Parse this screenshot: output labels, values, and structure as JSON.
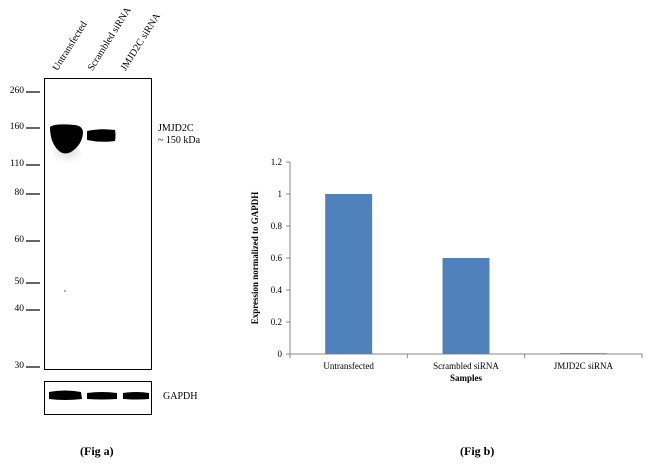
{
  "fig_a": {
    "lane_labels": [
      "Untransfected",
      "Scrambled siRNA",
      "JMJD2C siRNA"
    ],
    "mw_markers": [
      "260",
      "160",
      "110",
      "80",
      "60",
      "50",
      "40",
      "30"
    ],
    "band_label_line1": "JMJD2C",
    "band_label_line2": "~ 150 kDa",
    "loading_control_label": "GAPDH",
    "caption": "(Fig a)"
  },
  "fig_b": {
    "caption": "(Fig b)"
  },
  "chart_data": {
    "type": "bar",
    "categories": [
      "Untransfected",
      "Scrambled siRNA",
      "JMJD2C siRNA"
    ],
    "values": [
      1.0,
      0.6,
      0.005
    ],
    "title": "",
    "xlabel": "Samples",
    "ylabel": "Expression normalized to GAPDH",
    "ylim": [
      0,
      1.2
    ],
    "yticks": [
      "0",
      "0.2",
      "0.4",
      "0.6",
      "0.8",
      "1",
      "1.2"
    ],
    "bar_color": "#4f81bd",
    "grid": false,
    "legend": "none"
  }
}
